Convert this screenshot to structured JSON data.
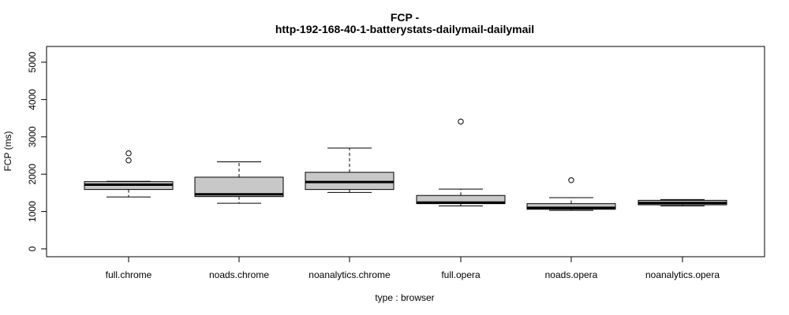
{
  "chart_data": {
    "type": "boxplot",
    "title_line1": "FCP -",
    "title_line2": "http-192-168-40-1-batterystats-dailymail-dailymail",
    "xlabel": "type : browser",
    "ylabel": "FCP (ms)",
    "ylim": [
      0,
      5000
    ],
    "yticks": [
      0,
      1000,
      2000,
      3000,
      4000,
      5000
    ],
    "grid": false,
    "box_color": "#c8c8c8",
    "categories": [
      "full.chrome",
      "noads.chrome",
      "noanalytics.chrome",
      "full.opera",
      "noads.opera",
      "noanalytics.opera"
    ],
    "boxes": [
      {
        "label": "full.chrome",
        "whisker_low": 1390,
        "q1": 1590,
        "median": 1720,
        "q3": 1800,
        "whisker_high": 1810,
        "outliers": [
          2370,
          2560
        ]
      },
      {
        "label": "noads.chrome",
        "whisker_low": 1220,
        "q1": 1400,
        "median": 1460,
        "q3": 1920,
        "whisker_high": 2330,
        "outliers": []
      },
      {
        "label": "noanalytics.chrome",
        "whisker_low": 1510,
        "q1": 1590,
        "median": 1790,
        "q3": 2050,
        "whisker_high": 2700,
        "outliers": []
      },
      {
        "label": "full.opera",
        "whisker_low": 1150,
        "q1": 1210,
        "median": 1240,
        "q3": 1430,
        "whisker_high": 1600,
        "outliers": [
          3410
        ]
      },
      {
        "label": "noads.opera",
        "whisker_low": 1030,
        "q1": 1060,
        "median": 1100,
        "q3": 1210,
        "whisker_high": 1370,
        "outliers": [
          1840
        ]
      },
      {
        "label": "noanalytics.opera",
        "whisker_low": 1150,
        "q1": 1180,
        "median": 1230,
        "q3": 1300,
        "whisker_high": 1320,
        "outliers": []
      }
    ]
  }
}
